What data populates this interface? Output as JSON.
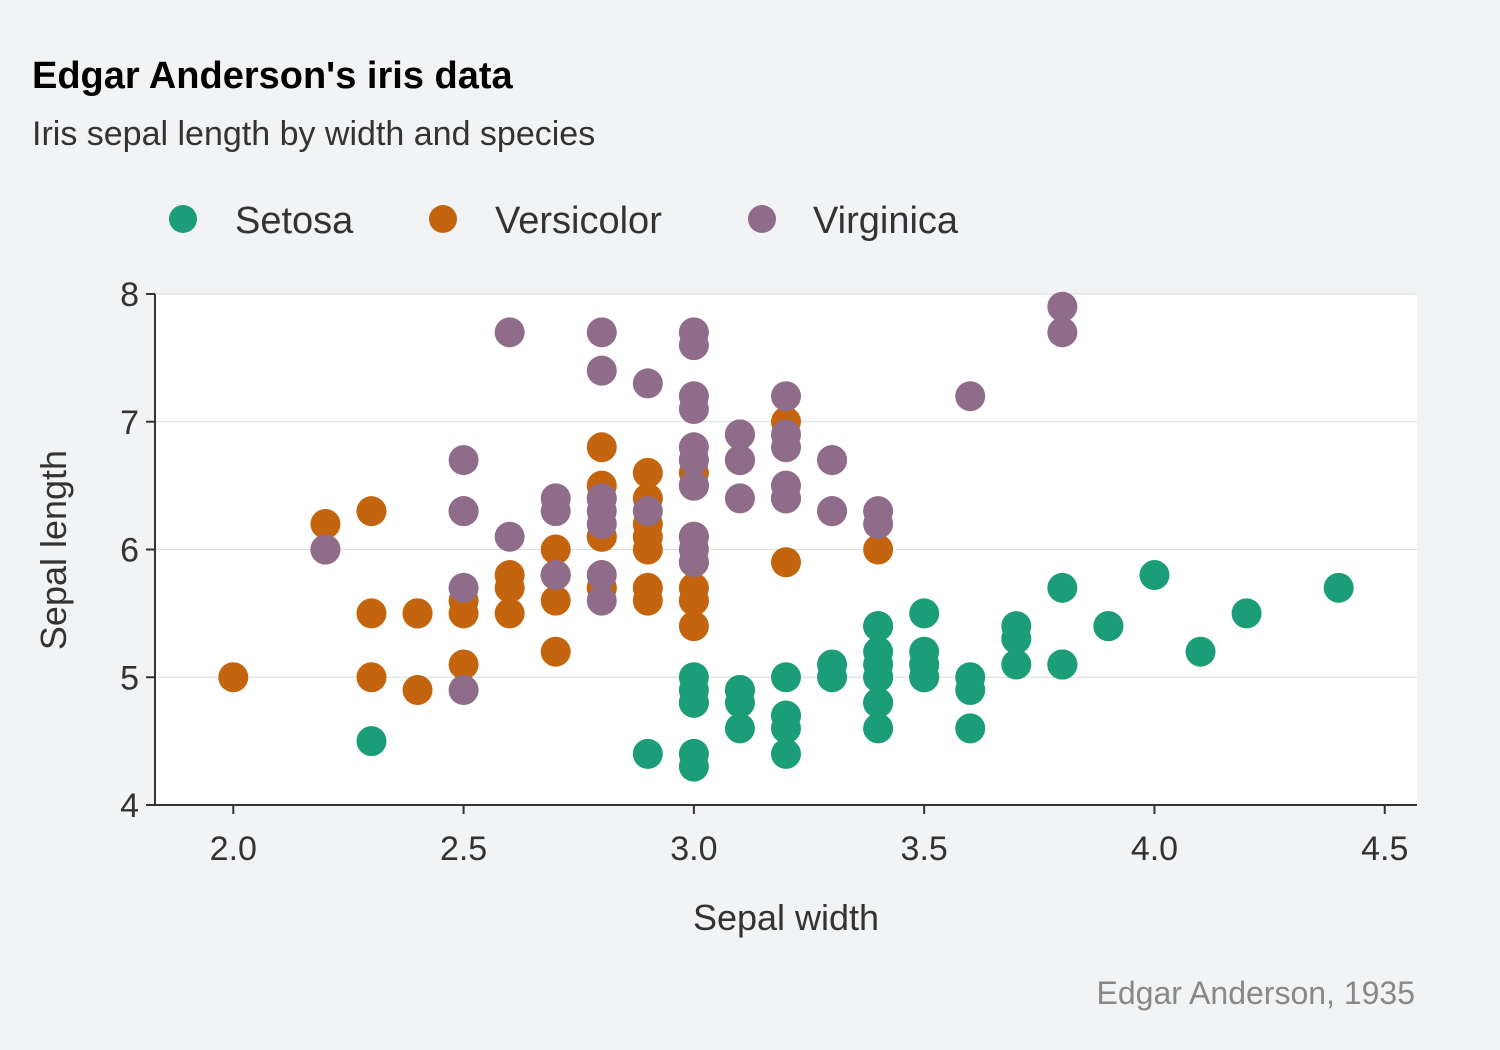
{
  "chart_data": {
    "type": "scatter",
    "title": "Edgar Anderson's iris data",
    "subtitle": "Iris sepal length by width and species",
    "xlabel": "Sepal width",
    "ylabel": "Sepal length",
    "caption": "Edgar Anderson, 1935",
    "xlim": [
      1.83,
      4.57
    ],
    "ylim": [
      4,
      8
    ],
    "xticks": [
      "2.0",
      "2.5",
      "3.0",
      "3.5",
      "4.0",
      "4.5"
    ],
    "yticks": [
      "4",
      "5",
      "6",
      "7",
      "8"
    ],
    "grid": "horizontal",
    "legend_position": "top-left",
    "series": [
      {
        "name": "Setosa",
        "color": "#1b9e77",
        "points": [
          [
            3.5,
            5.1
          ],
          [
            3.0,
            4.9
          ],
          [
            3.2,
            4.7
          ],
          [
            3.1,
            4.6
          ],
          [
            3.6,
            5.0
          ],
          [
            3.9,
            5.4
          ],
          [
            3.4,
            4.6
          ],
          [
            3.4,
            5.0
          ],
          [
            2.9,
            4.4
          ],
          [
            3.1,
            4.9
          ],
          [
            3.7,
            5.4
          ],
          [
            3.4,
            4.8
          ],
          [
            3.0,
            4.8
          ],
          [
            3.0,
            4.3
          ],
          [
            4.0,
            5.8
          ],
          [
            4.4,
            5.7
          ],
          [
            3.9,
            5.4
          ],
          [
            3.5,
            5.1
          ],
          [
            3.8,
            5.7
          ],
          [
            3.8,
            5.1
          ],
          [
            3.4,
            5.4
          ],
          [
            3.7,
            5.1
          ],
          [
            3.6,
            4.6
          ],
          [
            3.3,
            5.1
          ],
          [
            3.4,
            4.8
          ],
          [
            3.0,
            5.0
          ],
          [
            3.4,
            5.0
          ],
          [
            3.5,
            5.2
          ],
          [
            3.4,
            5.2
          ],
          [
            3.2,
            4.7
          ],
          [
            3.1,
            4.8
          ],
          [
            3.4,
            5.4
          ],
          [
            4.1,
            5.2
          ],
          [
            4.2,
            5.5
          ],
          [
            3.1,
            4.9
          ],
          [
            3.2,
            5.0
          ],
          [
            3.5,
            5.5
          ],
          [
            3.6,
            4.9
          ],
          [
            3.0,
            4.4
          ],
          [
            3.4,
            5.1
          ],
          [
            3.5,
            5.0
          ],
          [
            2.3,
            4.5
          ],
          [
            3.2,
            4.4
          ],
          [
            3.5,
            5.0
          ],
          [
            3.8,
            5.1
          ],
          [
            3.0,
            4.8
          ],
          [
            3.8,
            5.1
          ],
          [
            3.2,
            4.6
          ],
          [
            3.7,
            5.3
          ],
          [
            3.3,
            5.0
          ]
        ]
      },
      {
        "name": "Versicolor",
        "color": "#c4640e",
        "points": [
          [
            3.2,
            7.0
          ],
          [
            3.2,
            6.4
          ],
          [
            3.1,
            6.9
          ],
          [
            2.3,
            5.5
          ],
          [
            2.8,
            6.5
          ],
          [
            2.8,
            5.7
          ],
          [
            3.3,
            6.3
          ],
          [
            2.4,
            4.9
          ],
          [
            2.9,
            6.6
          ],
          [
            2.7,
            5.2
          ],
          [
            2.0,
            5.0
          ],
          [
            3.0,
            5.9
          ],
          [
            2.2,
            6.0
          ],
          [
            2.9,
            6.1
          ],
          [
            2.9,
            5.6
          ],
          [
            3.1,
            6.7
          ],
          [
            3.0,
            5.6
          ],
          [
            2.7,
            5.8
          ],
          [
            2.2,
            6.2
          ],
          [
            2.5,
            5.6
          ],
          [
            3.2,
            5.9
          ],
          [
            2.8,
            6.1
          ],
          [
            2.5,
            6.3
          ],
          [
            2.8,
            6.1
          ],
          [
            2.9,
            6.4
          ],
          [
            3.0,
            6.6
          ],
          [
            2.8,
            6.8
          ],
          [
            3.0,
            6.7
          ],
          [
            2.9,
            6.0
          ],
          [
            2.6,
            5.7
          ],
          [
            2.4,
            5.5
          ],
          [
            2.4,
            5.5
          ],
          [
            2.7,
            5.8
          ],
          [
            2.7,
            6.0
          ],
          [
            3.0,
            5.4
          ],
          [
            3.4,
            6.0
          ],
          [
            3.1,
            6.7
          ],
          [
            2.3,
            6.3
          ],
          [
            3.0,
            5.6
          ],
          [
            2.5,
            5.5
          ],
          [
            2.6,
            5.5
          ],
          [
            3.0,
            6.1
          ],
          [
            2.6,
            5.8
          ],
          [
            2.3,
            5.0
          ],
          [
            2.7,
            5.6
          ],
          [
            3.0,
            5.7
          ],
          [
            2.9,
            5.7
          ],
          [
            2.9,
            6.2
          ],
          [
            2.5,
            5.1
          ],
          [
            2.8,
            5.7
          ]
        ]
      },
      {
        "name": "Virginica",
        "color": "#8e6c8a",
        "points": [
          [
            3.3,
            6.3
          ],
          [
            2.7,
            5.8
          ],
          [
            3.0,
            7.1
          ],
          [
            2.9,
            6.3
          ],
          [
            3.0,
            6.5
          ],
          [
            3.0,
            7.6
          ],
          [
            2.5,
            4.9
          ],
          [
            2.9,
            7.3
          ],
          [
            2.5,
            6.7
          ],
          [
            3.6,
            7.2
          ],
          [
            3.2,
            6.5
          ],
          [
            2.7,
            6.4
          ],
          [
            3.0,
            6.8
          ],
          [
            2.5,
            5.7
          ],
          [
            2.8,
            5.8
          ],
          [
            3.2,
            6.4
          ],
          [
            3.0,
            6.5
          ],
          [
            3.8,
            7.7
          ],
          [
            2.6,
            7.7
          ],
          [
            2.2,
            6.0
          ],
          [
            3.2,
            6.9
          ],
          [
            2.8,
            5.6
          ],
          [
            2.8,
            7.7
          ],
          [
            2.7,
            6.3
          ],
          [
            3.3,
            6.7
          ],
          [
            3.2,
            7.2
          ],
          [
            2.8,
            6.2
          ],
          [
            3.0,
            6.1
          ],
          [
            2.8,
            6.4
          ],
          [
            3.0,
            7.2
          ],
          [
            2.8,
            7.4
          ],
          [
            3.8,
            7.9
          ],
          [
            2.8,
            6.4
          ],
          [
            2.8,
            6.3
          ],
          [
            2.6,
            6.1
          ],
          [
            3.0,
            7.7
          ],
          [
            3.4,
            6.3
          ],
          [
            3.1,
            6.4
          ],
          [
            3.0,
            6.0
          ],
          [
            3.1,
            6.9
          ],
          [
            3.1,
            6.7
          ],
          [
            3.1,
            6.9
          ],
          [
            2.7,
            5.8
          ],
          [
            3.2,
            6.8
          ],
          [
            3.3,
            6.7
          ],
          [
            3.0,
            6.7
          ],
          [
            2.5,
            6.3
          ],
          [
            3.0,
            6.5
          ],
          [
            3.4,
            6.2
          ],
          [
            3.0,
            5.9
          ]
        ]
      }
    ]
  }
}
